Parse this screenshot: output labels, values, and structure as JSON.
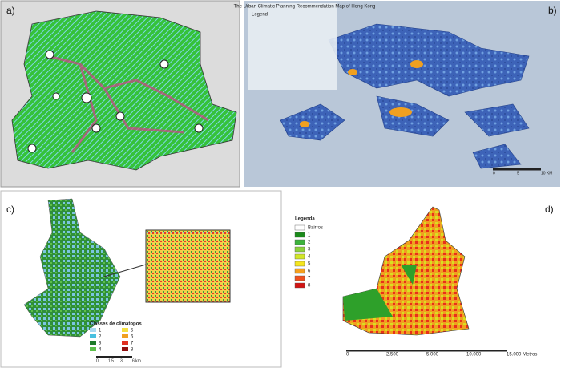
{
  "panels": [
    {
      "label": "a)"
    },
    {
      "label": "b)",
      "title": "The Urban Climatic Planning Recommendation Map of Hong Kong",
      "legend_title": "Legend",
      "scale": [
        "0",
        "5",
        "10 KM"
      ]
    },
    {
      "label": "c)",
      "legend_title": "Classes de climatopos",
      "legend": [
        "1",
        "2",
        "3",
        "4",
        "5",
        "6",
        "7",
        "8"
      ],
      "scale": [
        "0",
        "1,5",
        "3",
        "6 km"
      ]
    },
    {
      "label": "d)",
      "legend_title": "Legenda",
      "legend": [
        "Bairros",
        "1",
        "2",
        "3",
        "4",
        "5",
        "6",
        "7",
        "8"
      ],
      "scale": [
        "0",
        "2.500",
        "5.000",
        "10.000",
        "15.000 Metros"
      ]
    }
  ]
}
